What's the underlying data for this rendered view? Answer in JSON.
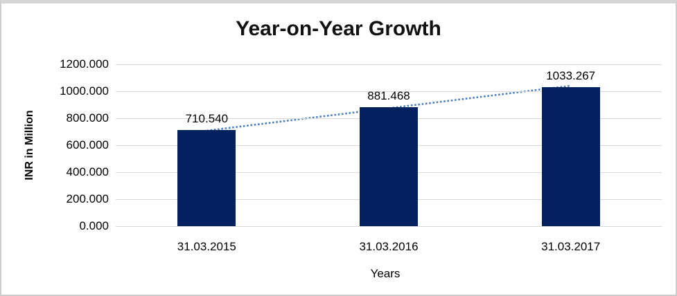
{
  "chart_data": {
    "type": "bar",
    "title": "Year-on-Year Growth",
    "categories": [
      "31.03.2015",
      "31.03.2016",
      "31.03.2017"
    ],
    "values": [
      710.54,
      881.468,
      1033.267
    ],
    "value_labels": [
      "710.540",
      "881.468",
      "1033.267"
    ],
    "xlabel": "Years",
    "ylabel": "INR in Million",
    "ylim": [
      0,
      1200
    ],
    "ytick_step": 200,
    "ytick_labels": [
      "0.000",
      "200.000",
      "400.000",
      "600.000",
      "800.000",
      "1000.000",
      "1200.000"
    ],
    "grid": true,
    "legend": false,
    "trendline": {
      "style": "dotted",
      "spans": "first-bar-top-to-last-bar-top",
      "color": "#4a7ebb"
    },
    "colors": {
      "bar": "#03215f",
      "gridline": "#d9d9d9",
      "trendline": "#4a7ebb",
      "text": "#000000",
      "frame_border": "#cdcdcd",
      "background": "#ffffff"
    }
  }
}
